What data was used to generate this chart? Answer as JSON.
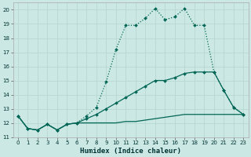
{
  "xlabel": "Humidex (Indice chaleur)",
  "bg_color": "#cce8e4",
  "grid_color": "#b8d8d2",
  "line_color": "#006655",
  "xlim": [
    -0.5,
    23.5
  ],
  "ylim": [
    11,
    20.5
  ],
  "xticks": [
    0,
    1,
    2,
    3,
    4,
    5,
    6,
    7,
    8,
    9,
    10,
    11,
    12,
    13,
    14,
    15,
    16,
    17,
    18,
    19,
    20,
    21,
    22,
    23
  ],
  "yticks": [
    11,
    12,
    13,
    14,
    15,
    16,
    17,
    18,
    19,
    20
  ],
  "series1_x": [
    0,
    1,
    2,
    3,
    4,
    5,
    6,
    7,
    8,
    9,
    10,
    11,
    12,
    13,
    14,
    15,
    16,
    17,
    18,
    19,
    20,
    21,
    22,
    23
  ],
  "series1_y": [
    12.5,
    11.6,
    11.5,
    11.9,
    11.5,
    11.9,
    12.0,
    12.5,
    13.1,
    14.9,
    17.2,
    18.9,
    18.9,
    19.4,
    20.1,
    19.3,
    19.5,
    20.1,
    18.9,
    18.9,
    15.6,
    14.3,
    13.1,
    12.6
  ],
  "series2_x": [
    0,
    1,
    2,
    3,
    4,
    5,
    6,
    7,
    8,
    9,
    10,
    11,
    12,
    13,
    14,
    15,
    16,
    17,
    18,
    19,
    20,
    21,
    22,
    23
  ],
  "series2_y": [
    12.5,
    11.6,
    11.5,
    11.9,
    11.5,
    11.9,
    12.0,
    12.3,
    12.6,
    13.0,
    13.4,
    13.8,
    14.2,
    14.6,
    15.0,
    15.0,
    15.2,
    15.5,
    15.6,
    15.6,
    15.6,
    14.3,
    13.1,
    12.6
  ],
  "series3_x": [
    0,
    1,
    2,
    3,
    4,
    5,
    6,
    7,
    8,
    9,
    10,
    11,
    12,
    13,
    14,
    15,
    16,
    17,
    18,
    19,
    20,
    21,
    22,
    23
  ],
  "series3_y": [
    12.5,
    11.6,
    11.5,
    11.9,
    11.5,
    11.9,
    12.0,
    12.0,
    12.0,
    12.0,
    12.0,
    12.1,
    12.1,
    12.2,
    12.3,
    12.4,
    12.5,
    12.6,
    12.6,
    12.6,
    12.6,
    12.6,
    12.6,
    12.6
  ]
}
